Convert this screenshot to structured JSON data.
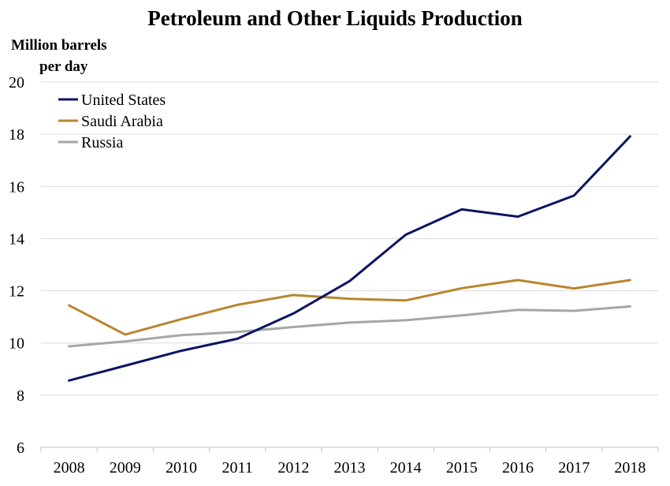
{
  "chart_data": {
    "type": "line",
    "title": "Petroleum and Other Liquids Production",
    "ylabel": [
      "Million barrels",
      "per day"
    ],
    "xlabel": "",
    "ylim": [
      6,
      20
    ],
    "yticks": [
      6,
      8,
      10,
      12,
      14,
      16,
      18,
      20
    ],
    "categories": [
      "2008",
      "2009",
      "2010",
      "2011",
      "2012",
      "2013",
      "2014",
      "2015",
      "2016",
      "2017",
      "2018"
    ],
    "grid": true,
    "legend_position": "top-left",
    "series": [
      {
        "name": "United States",
        "color": "#0b1464",
        "values": [
          8.56,
          9.13,
          9.7,
          10.16,
          11.13,
          12.37,
          14.15,
          15.12,
          14.84,
          15.65,
          17.92
        ]
      },
      {
        "name": "Saudi Arabia",
        "color": "#b8862e",
        "values": [
          11.44,
          10.32,
          10.91,
          11.46,
          11.84,
          11.69,
          11.63,
          12.1,
          12.41,
          12.09,
          12.41
        ]
      },
      {
        "name": "Russia",
        "color": "#a6a6a6",
        "values": [
          9.87,
          10.06,
          10.3,
          10.42,
          10.61,
          10.78,
          10.87,
          11.06,
          11.27,
          11.23,
          11.4
        ]
      }
    ]
  }
}
